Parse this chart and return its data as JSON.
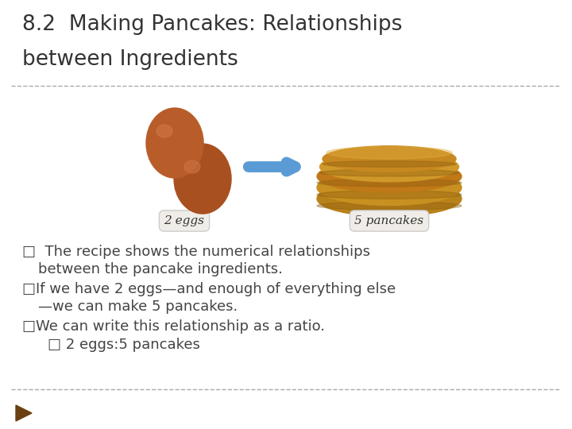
{
  "title_line1": "8.2  Making Pancakes: Relationships",
  "title_line2": "between Ingredients",
  "title_fontsize": 19,
  "title_color": "#333333",
  "bg_color": "#ffffff",
  "separator_color": "#aaaaaa",
  "egg_label": "2 eggs",
  "pancake_label": "5 pancakes",
  "label_box_facecolor": "#f0ede8",
  "label_border_color": "#cccccc",
  "label_fontsize": 11,
  "bullet_color": "#444444",
  "bullet_fontsize": 13,
  "egg_color1": "#b85c2a",
  "egg_color2": "#a85020",
  "egg_highlight": "#d07848",
  "arrow_color": "#5b9bd5",
  "footer_arrow_color": "#6B4010",
  "pancake_colors": [
    "#b8821a",
    "#c89020",
    "#c07818",
    "#d09828",
    "#c88820"
  ],
  "pancake_top_color": "#e0b040"
}
